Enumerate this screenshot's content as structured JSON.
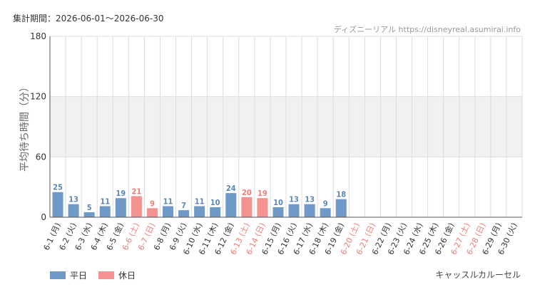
{
  "header": {
    "period_label": "集計期間：2026-06-01～2026-06-30",
    "source_label": "ディズニーリアル https://disneyreal.asumirai.info"
  },
  "footer": {
    "attraction_name": "キャッスルカルーセル"
  },
  "colors": {
    "weekday": "#6f9ac8",
    "holiday": "#f4928f",
    "weekday_text": "#5a86b8",
    "holiday_text": "#f07c78",
    "band": "#f1f1f1",
    "grid": "#dddddd"
  },
  "chart_data": {
    "type": "bar",
    "ylabel": "平均待ち時間（分）",
    "ylim": [
      0,
      180
    ],
    "yticks": [
      0,
      60,
      120,
      180
    ],
    "shaded_bands": [
      [
        60,
        120
      ]
    ],
    "legend": [
      {
        "key": "weekday",
        "label": "平日"
      },
      {
        "key": "holiday",
        "label": "休日"
      }
    ],
    "categories": [
      "6-1 (月)",
      "6-2 (火)",
      "6-3 (水)",
      "6-4 (木)",
      "6-5 (金)",
      "6-6 (土)",
      "6-7 (日)",
      "6-8 (月)",
      "6-9 (火)",
      "6-10 (水)",
      "6-11 (木)",
      "6-12 (金)",
      "6-13 (土)",
      "6-14 (日)",
      "6-15 (月)",
      "6-16 (火)",
      "6-17 (水)",
      "6-18 (木)",
      "6-19 (金)",
      "6-20 (土)",
      "6-21 (日)",
      "6-22 (月)",
      "6-23 (火)",
      "6-24 (水)",
      "6-25 (木)",
      "6-26 (金)",
      "6-27 (土)",
      "6-28 (日)",
      "6-29 (月)",
      "6-30 (火)"
    ],
    "holiday_flags": [
      false,
      false,
      false,
      false,
      false,
      true,
      true,
      false,
      false,
      false,
      false,
      false,
      true,
      true,
      false,
      false,
      false,
      false,
      false,
      true,
      true,
      false,
      false,
      false,
      false,
      false,
      true,
      true,
      false,
      false
    ],
    "values": [
      25,
      13,
      5,
      11,
      19,
      21,
      9,
      11,
      7,
      11,
      10,
      24,
      20,
      19,
      10,
      13,
      13,
      9,
      18,
      null,
      null,
      null,
      null,
      null,
      null,
      null,
      null,
      null,
      null,
      null
    ]
  }
}
